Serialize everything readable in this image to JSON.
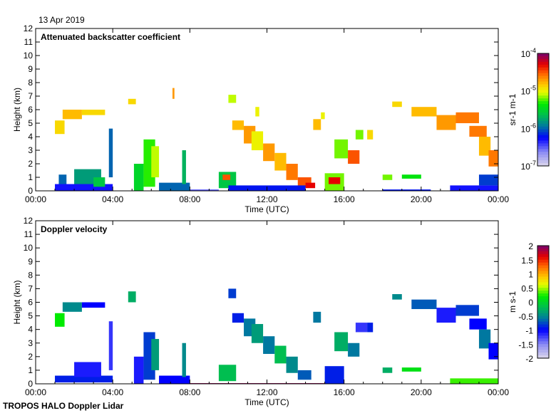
{
  "header": {
    "date": "13 Apr 2019",
    "footer": "TROPOS HALO Doppler Lidar"
  },
  "chart_data": [
    {
      "type": "heatmap",
      "title": "Attenuated backscatter coefficient",
      "xlabel": "Time (UTC)",
      "ylabel": "Height (km)",
      "xlim": [
        0,
        24
      ],
      "ylim": [
        0,
        12
      ],
      "xticks": [
        0,
        4,
        8,
        12,
        16,
        20,
        24
      ],
      "xtick_labels": [
        "00:00",
        "04:00",
        "08:00",
        "12:00",
        "16:00",
        "20:00",
        "00:00"
      ],
      "yticks": [
        0,
        1,
        2,
        3,
        4,
        5,
        6,
        7,
        8,
        9,
        10,
        11,
        12
      ],
      "ytick_labels": [
        "0",
        "1",
        "2",
        "3",
        "4",
        "5",
        "6",
        "7",
        "8",
        "9",
        "10",
        "11",
        "12"
      ],
      "colorbar": {
        "label": "sr-1 m-1",
        "scale": "log",
        "range": [
          -7,
          -4
        ],
        "tick_values": [
          -7,
          -6,
          -5,
          -4
        ],
        "tick_labels": [
          "10",
          "10",
          "10",
          "10"
        ],
        "tick_exponents": [
          "-7",
          "-6",
          "-5",
          "-4"
        ]
      },
      "patches": [
        [
          1.0,
          4.0,
          0,
          0.5,
          -6.3
        ],
        [
          1.2,
          1.6,
          0.5,
          1.2,
          -6.0
        ],
        [
          2.0,
          3.4,
          0.5,
          1.6,
          -5.8
        ],
        [
          3.0,
          3.6,
          0.3,
          1.0,
          -5.6
        ],
        [
          3.8,
          4.0,
          1,
          4.6,
          -6.0
        ],
        [
          1.0,
          1.5,
          4.2,
          5.2,
          -4.9
        ],
        [
          1.4,
          2.4,
          5.3,
          6.0,
          -4.8
        ],
        [
          2.4,
          3.6,
          5.6,
          6.0,
          -4.9
        ],
        [
          4.8,
          5.2,
          6.4,
          6.8,
          -4.9
        ],
        [
          5.1,
          5.6,
          0,
          2.0,
          -5.5
        ],
        [
          5.6,
          6.2,
          0.3,
          3.8,
          -5.3
        ],
        [
          6.0,
          6.4,
          1.0,
          3.3,
          -5.1
        ],
        [
          6.4,
          8.0,
          0,
          0.6,
          -6.0
        ],
        [
          7.6,
          7.8,
          0.5,
          3.0,
          -5.7
        ],
        [
          7.1,
          7.2,
          6.8,
          7.6,
          -4.7
        ],
        [
          8.0,
          9.5,
          0,
          0.1,
          -6.5
        ],
        [
          9.5,
          10.4,
          0.2,
          1.4,
          -5.6
        ],
        [
          9.7,
          10.1,
          0.8,
          1.2,
          -4.5
        ],
        [
          10.0,
          10.4,
          6.5,
          7.1,
          -5.1
        ],
        [
          10.2,
          10.8,
          4.5,
          5.2,
          -4.8
        ],
        [
          10.8,
          11.4,
          3.5,
          4.8,
          -4.7
        ],
        [
          11.2,
          11.8,
          3.0,
          4.4,
          -5.0
        ],
        [
          11.8,
          12.4,
          2.2,
          3.5,
          -4.7
        ],
        [
          12.4,
          13.0,
          1.5,
          2.8,
          -4.8
        ],
        [
          13.0,
          13.6,
          0.8,
          2.0,
          -4.6
        ],
        [
          13.6,
          14.3,
          0.3,
          1.0,
          -4.5
        ],
        [
          14.0,
          14.5,
          0.2,
          0.6,
          -4.3
        ],
        [
          10.0,
          14.0,
          0,
          0.4,
          -6.2
        ],
        [
          11.4,
          11.6,
          5.5,
          6.2,
          -5.0
        ],
        [
          14.4,
          14.8,
          4.5,
          5.3,
          -4.8
        ],
        [
          14.8,
          15.0,
          5.3,
          5.8,
          -5.0
        ],
        [
          15.0,
          16.0,
          0,
          1.3,
          -5.2
        ],
        [
          15.2,
          15.8,
          0.5,
          1.0,
          -4.3
        ],
        [
          15.5,
          16.2,
          2.4,
          3.8,
          -5.2
        ],
        [
          16.2,
          16.8,
          2.0,
          3.0,
          -4.5
        ],
        [
          16.6,
          17.0,
          3.8,
          4.5,
          -5.2
        ],
        [
          17.2,
          17.5,
          3.8,
          4.5,
          -4.9
        ],
        [
          18.0,
          18.5,
          0.8,
          1.2,
          -5.2
        ],
        [
          19.0,
          20.0,
          0.9,
          1.2,
          -5.4
        ],
        [
          18.0,
          20.5,
          0,
          0.1,
          -6.2
        ],
        [
          18.5,
          19.0,
          6.2,
          6.6,
          -4.9
        ],
        [
          19.5,
          20.8,
          5.5,
          6.2,
          -4.8
        ],
        [
          20.8,
          21.8,
          4.5,
          5.6,
          -4.7
        ],
        [
          21.8,
          23.0,
          5.0,
          5.8,
          -4.6
        ],
        [
          22.5,
          23.4,
          4.0,
          4.8,
          -4.6
        ],
        [
          23.0,
          23.6,
          2.6,
          4.0,
          -4.8
        ],
        [
          23.5,
          24.0,
          1.8,
          3.0,
          -4.6
        ],
        [
          21.5,
          24.0,
          0,
          0.4,
          -6.3
        ],
        [
          23.0,
          24.0,
          0.4,
          1.2,
          -6.1
        ]
      ]
    },
    {
      "type": "heatmap",
      "title": "Doppler velocity",
      "xlabel": "Time (UTC)",
      "ylabel": "Height (km)",
      "xlim": [
        0,
        24
      ],
      "ylim": [
        0,
        12
      ],
      "xticks": [
        0,
        4,
        8,
        12,
        16,
        20,
        24
      ],
      "xtick_labels": [
        "00:00",
        "04:00",
        "08:00",
        "12:00",
        "16:00",
        "20:00",
        "00:00"
      ],
      "yticks": [
        0,
        1,
        2,
        3,
        4,
        5,
        6,
        7,
        8,
        9,
        10,
        11,
        12
      ],
      "ytick_labels": [
        "0",
        "1",
        "2",
        "3",
        "4",
        "5",
        "6",
        "7",
        "8",
        "9",
        "10",
        "11",
        "12"
      ],
      "colorbar": {
        "label": "m s-1",
        "scale": "linear",
        "range": [
          -2,
          2
        ],
        "tick_values": [
          2,
          1.5,
          1,
          0.5,
          0,
          -0.5,
          -1,
          -1.5,
          -2
        ],
        "tick_labels": [
          "2",
          "1.5",
          "1",
          "0.5",
          "0",
          "-0.5",
          "-1",
          "-1.5",
          "-2"
        ]
      },
      "patches": [
        [
          1.0,
          4.0,
          0.1,
          0.6,
          -0.9
        ],
        [
          2.0,
          3.4,
          0.5,
          1.6,
          -1.1
        ],
        [
          3.8,
          4.0,
          1,
          4.6,
          -1.2
        ],
        [
          1.0,
          1.5,
          4.2,
          5.2,
          0.2
        ],
        [
          1.4,
          2.4,
          5.3,
          6.0,
          -0.5
        ],
        [
          2.4,
          3.6,
          5.6,
          6.0,
          -1.0
        ],
        [
          4.8,
          5.2,
          6.0,
          6.8,
          -0.3
        ],
        [
          5.1,
          5.6,
          0,
          2.0,
          -1.1
        ],
        [
          5.6,
          6.2,
          0.3,
          3.8,
          -0.8
        ],
        [
          6.0,
          6.4,
          1.0,
          3.3,
          -0.4
        ],
        [
          6.4,
          8.0,
          0,
          0.6,
          -1.0
        ],
        [
          7.6,
          7.8,
          0.5,
          3.0,
          -0.5
        ],
        [
          8.0,
          15.0,
          0,
          0.05,
          1.9
        ],
        [
          9.5,
          10.4,
          0.2,
          1.4,
          -0.2
        ],
        [
          10.0,
          10.4,
          6.3,
          7.0,
          -0.8
        ],
        [
          10.2,
          10.8,
          4.5,
          5.2,
          -0.9
        ],
        [
          10.8,
          11.4,
          3.5,
          4.8,
          -0.6
        ],
        [
          11.2,
          11.8,
          3.0,
          4.4,
          -0.4
        ],
        [
          11.8,
          12.4,
          2.2,
          3.5,
          -0.6
        ],
        [
          12.4,
          13.0,
          1.5,
          2.8,
          -0.2
        ],
        [
          13.0,
          13.6,
          0.8,
          2.0,
          -0.5
        ],
        [
          13.6,
          14.3,
          0.3,
          1.0,
          -0.7
        ],
        [
          14.4,
          14.8,
          4.5,
          5.3,
          -0.6
        ],
        [
          15.0,
          16.0,
          0,
          1.3,
          -0.9
        ],
        [
          15.5,
          16.2,
          2.4,
          3.8,
          -0.3
        ],
        [
          16.2,
          16.8,
          2.0,
          3.0,
          -0.6
        ],
        [
          16.6,
          17.2,
          3.8,
          4.5,
          -1.2
        ],
        [
          17.2,
          17.5,
          3.8,
          4.5,
          -0.9
        ],
        [
          18.0,
          18.5,
          0.8,
          1.2,
          -0.3
        ],
        [
          19.0,
          20.0,
          0.9,
          1.2,
          0.1
        ],
        [
          18.5,
          19.0,
          6.2,
          6.6,
          -0.5
        ],
        [
          19.5,
          20.8,
          5.5,
          6.2,
          -0.7
        ],
        [
          20.8,
          21.8,
          4.5,
          5.6,
          -1.1
        ],
        [
          21.8,
          23.0,
          5.0,
          5.8,
          -0.8
        ],
        [
          22.5,
          23.4,
          4.0,
          4.8,
          -1.0
        ],
        [
          23.0,
          23.6,
          2.6,
          4.0,
          -0.6
        ],
        [
          23.5,
          24.0,
          1.8,
          3.0,
          -1.0
        ],
        [
          21.5,
          24.0,
          0,
          0.4,
          0.3
        ]
      ]
    }
  ]
}
